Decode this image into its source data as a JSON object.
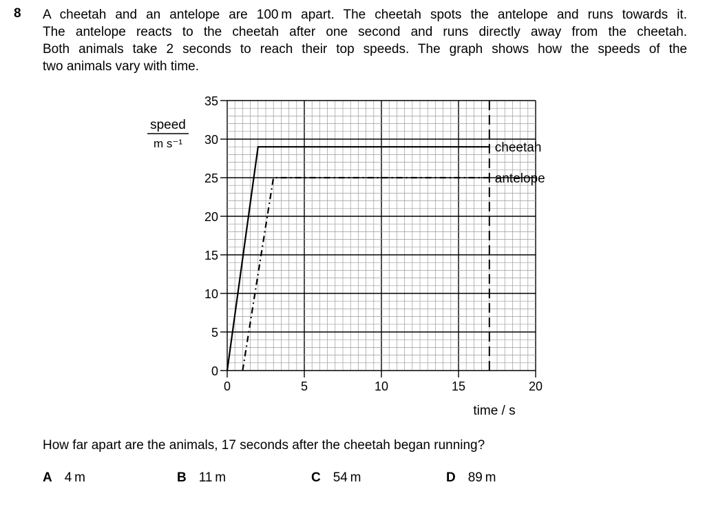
{
  "question": {
    "number": "8",
    "stem_lines": [
      "A cheetah and an antelope are 100 m apart. The cheetah spots the antelope and runs towards it.",
      "The antelope reacts to the cheetah after one second and runs directly away from the cheetah.",
      "Both animals take 2 seconds to reach their top speeds. The graph shows how the speeds of the",
      "two animals vary with time."
    ],
    "prompt": "How far apart are the animals, 17 seconds after the cheetah began running?",
    "options": [
      {
        "letter": "A",
        "text": "4 m"
      },
      {
        "letter": "B",
        "text": "11 m"
      },
      {
        "letter": "C",
        "text": "54 m"
      },
      {
        "letter": "D",
        "text": "89 m"
      }
    ]
  },
  "chart_data": {
    "type": "line",
    "xlabel": "time / s",
    "ylabel_numerator": "speed",
    "ylabel_denominator": "m s⁻¹",
    "xlim": [
      0,
      20
    ],
    "ylim": [
      0,
      35
    ],
    "x_ticks": [
      "0",
      "5",
      "10",
      "15",
      "20"
    ],
    "y_ticks": [
      "0",
      "5",
      "10",
      "15",
      "20",
      "25",
      "30",
      "35"
    ],
    "grid": true,
    "series": [
      {
        "name": "cheetah",
        "style": "solid",
        "points": [
          [
            0,
            0
          ],
          [
            2,
            29
          ],
          [
            17,
            29
          ]
        ]
      },
      {
        "name": "antelope",
        "style": "dash-dot",
        "points": [
          [
            1,
            0
          ],
          [
            3,
            25
          ],
          [
            17,
            25
          ]
        ]
      }
    ],
    "marker_line": {
      "x": 17,
      "style": "dashed"
    }
  }
}
